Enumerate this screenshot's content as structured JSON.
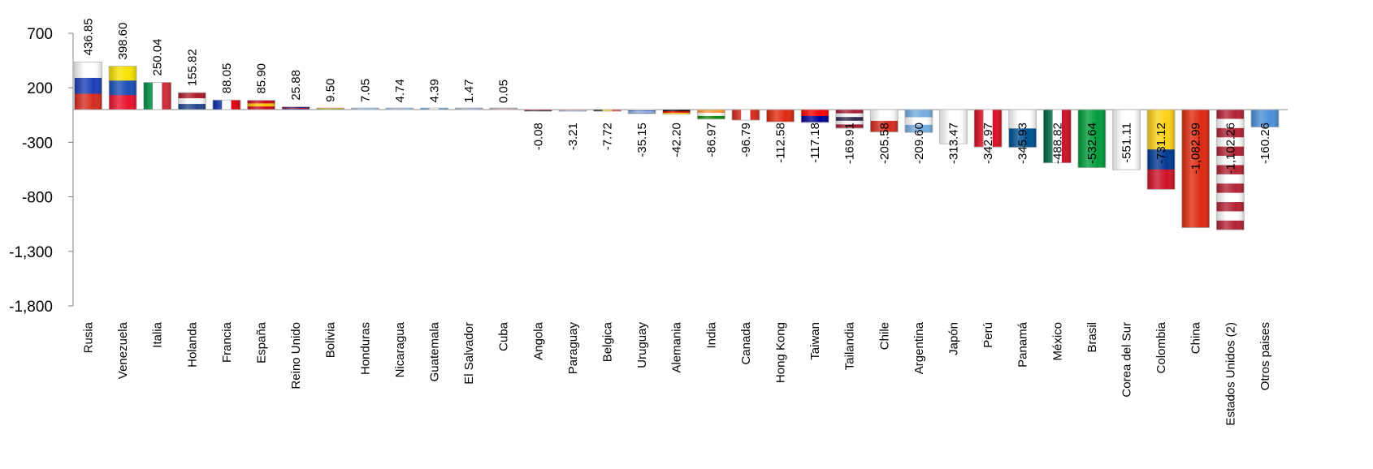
{
  "chart_data": {
    "type": "bar",
    "title": "",
    "xlabel": "",
    "ylabel": "",
    "ylim": [
      -1800,
      700
    ],
    "yticks": [
      700,
      200,
      -300,
      -800,
      -1300,
      -1800
    ],
    "ytick_labels": [
      "700",
      "200",
      "-300",
      "-800",
      "-1,300",
      "-1,800"
    ],
    "grid": false,
    "legend": "none",
    "categories": [
      "Rusia",
      "Venezuela",
      "Italia",
      "Holanda",
      "Francia",
      "España",
      "Reino Unido",
      "Bolivia",
      "Honduras",
      "Nicaragua",
      "Guatemala",
      "El Salvador",
      "Cuba",
      "Angola",
      "Paraguay",
      "Belgica",
      "Uruguay",
      "Alemania",
      "India",
      "Canada",
      "Hong Kong",
      "Taiwan",
      "Tailandia",
      "Chile",
      "Argentina",
      "Japón",
      "Perú",
      "Panamá",
      "México",
      "Brasil",
      "Corea del Sur",
      "Colombia",
      "China",
      "Estados Unidos (2)",
      "Otros paises"
    ],
    "values": [
      436.85,
      398.6,
      250.04,
      155.82,
      88.05,
      85.9,
      25.88,
      9.5,
      7.05,
      4.74,
      4.39,
      1.47,
      0.05,
      -0.08,
      -3.21,
      -7.72,
      -35.15,
      -42.2,
      -86.97,
      -96.79,
      -112.58,
      -117.18,
      -169.91,
      -205.58,
      -209.6,
      -313.47,
      -342.97,
      -345.93,
      -488.82,
      -532.64,
      -551.11,
      -731.12,
      -1082.99,
      -1102.26,
      -160.26
    ],
    "value_labels": [
      "436.85",
      "398.60",
      "250.04",
      "155.82",
      "88.05",
      "85.90",
      "25.88",
      "9.50",
      "7.05",
      "4.74",
      "4.39",
      "1.47",
      "0.05",
      "-0.08",
      "-3.21",
      "-7.72",
      "-35.15",
      "-42.20",
      "-86.97",
      "-96.79",
      "-112.58",
      "-117.18",
      "-169.91",
      "-205.58",
      "-209.60",
      "-313.47",
      "-342.97",
      "-345.93",
      "-488.82",
      "-532.64",
      "-551.11",
      "-731.12",
      "-1,082.99",
      "-1,102.26",
      "-160.26"
    ],
    "bar_style": "national flag of each country",
    "flags": [
      {
        "t": "h",
        "c": [
          "#ffffff",
          "#1c3fb8",
          "#d52b1e"
        ]
      },
      {
        "t": "h",
        "c": [
          "#f7e100",
          "#1a4fb5",
          "#e8112d"
        ]
      },
      {
        "t": "v",
        "c": [
          "#009246",
          "#ffffff",
          "#ce2b37"
        ]
      },
      {
        "t": "h",
        "c": [
          "#ae1c28",
          "#ffffff",
          "#21468b"
        ]
      },
      {
        "t": "v",
        "c": [
          "#0c2ea8",
          "#ffffff",
          "#e1000f"
        ]
      },
      {
        "t": "h",
        "c": [
          "#c60b1e",
          "#ffc400",
          "#c60b1e"
        ]
      },
      {
        "t": "h",
        "c": [
          "#1a2a80",
          "#c8102e",
          "#1a2a80"
        ]
      },
      {
        "t": "h",
        "c": [
          "#d52b1e",
          "#f9e300",
          "#007934"
        ]
      },
      {
        "t": "h",
        "c": [
          "#0073cf",
          "#ffffff",
          "#0073cf"
        ]
      },
      {
        "t": "h",
        "c": [
          "#0067c6",
          "#ffffff",
          "#0067c6"
        ]
      },
      {
        "t": "v",
        "c": [
          "#4997d0",
          "#ffffff",
          "#4997d0"
        ]
      },
      {
        "t": "h",
        "c": [
          "#0f47af",
          "#ffffff",
          "#0f47af"
        ]
      },
      {
        "t": "h",
        "c": [
          "#002a8f",
          "#ffffff",
          "#cf142b"
        ]
      },
      {
        "t": "h",
        "c": [
          "#cc092f",
          "#000000"
        ]
      },
      {
        "t": "h",
        "c": [
          "#d52b1e",
          "#ffffff",
          "#0038a8"
        ]
      },
      {
        "t": "v",
        "c": [
          "#000000",
          "#fdda24",
          "#ef3340"
        ]
      },
      {
        "t": "h",
        "c": [
          "#ffffff",
          "#0038a8",
          "#ffffff",
          "#0038a8"
        ]
      },
      {
        "t": "h",
        "c": [
          "#000000",
          "#dd0000",
          "#ffce00"
        ]
      },
      {
        "t": "h",
        "c": [
          "#ff9933",
          "#ffffff",
          "#138808"
        ]
      },
      {
        "t": "v",
        "c": [
          "#d52b1e",
          "#ffffff",
          "#d52b1e"
        ]
      },
      {
        "t": "h",
        "c": [
          "#de2910"
        ]
      },
      {
        "t": "h",
        "c": [
          "#fe0000",
          "#000095"
        ]
      },
      {
        "t": "h",
        "c": [
          "#a51931",
          "#f4f5f8",
          "#2d2a4a",
          "#f4f5f8",
          "#a51931"
        ]
      },
      {
        "t": "h",
        "c": [
          "#ffffff",
          "#d52b1e"
        ]
      },
      {
        "t": "h",
        "c": [
          "#74acdf",
          "#ffffff",
          "#74acdf"
        ]
      },
      {
        "t": "h",
        "c": [
          "#ffffff"
        ]
      },
      {
        "t": "v",
        "c": [
          "#d91023",
          "#ffffff",
          "#d91023"
        ]
      },
      {
        "t": "h",
        "c": [
          "#ffffff",
          "#005293"
        ]
      },
      {
        "t": "v",
        "c": [
          "#006847",
          "#ffffff",
          "#ce1126"
        ]
      },
      {
        "t": "h",
        "c": [
          "#009c3b"
        ]
      },
      {
        "t": "h",
        "c": [
          "#ffffff"
        ]
      },
      {
        "t": "h",
        "c": [
          "#fcd116",
          "#fcd116",
          "#003893",
          "#ce1126"
        ]
      },
      {
        "t": "h",
        "c": [
          "#de2910"
        ]
      },
      {
        "t": "h",
        "c": [
          "#b22234",
          "#ffffff",
          "#b22234",
          "#ffffff",
          "#b22234",
          "#ffffff",
          "#b22234",
          "#ffffff",
          "#b22234",
          "#ffffff",
          "#b22234",
          "#ffffff",
          "#b22234"
        ]
      },
      {
        "t": "h",
        "c": [
          "#4a8fd8"
        ]
      }
    ]
  }
}
